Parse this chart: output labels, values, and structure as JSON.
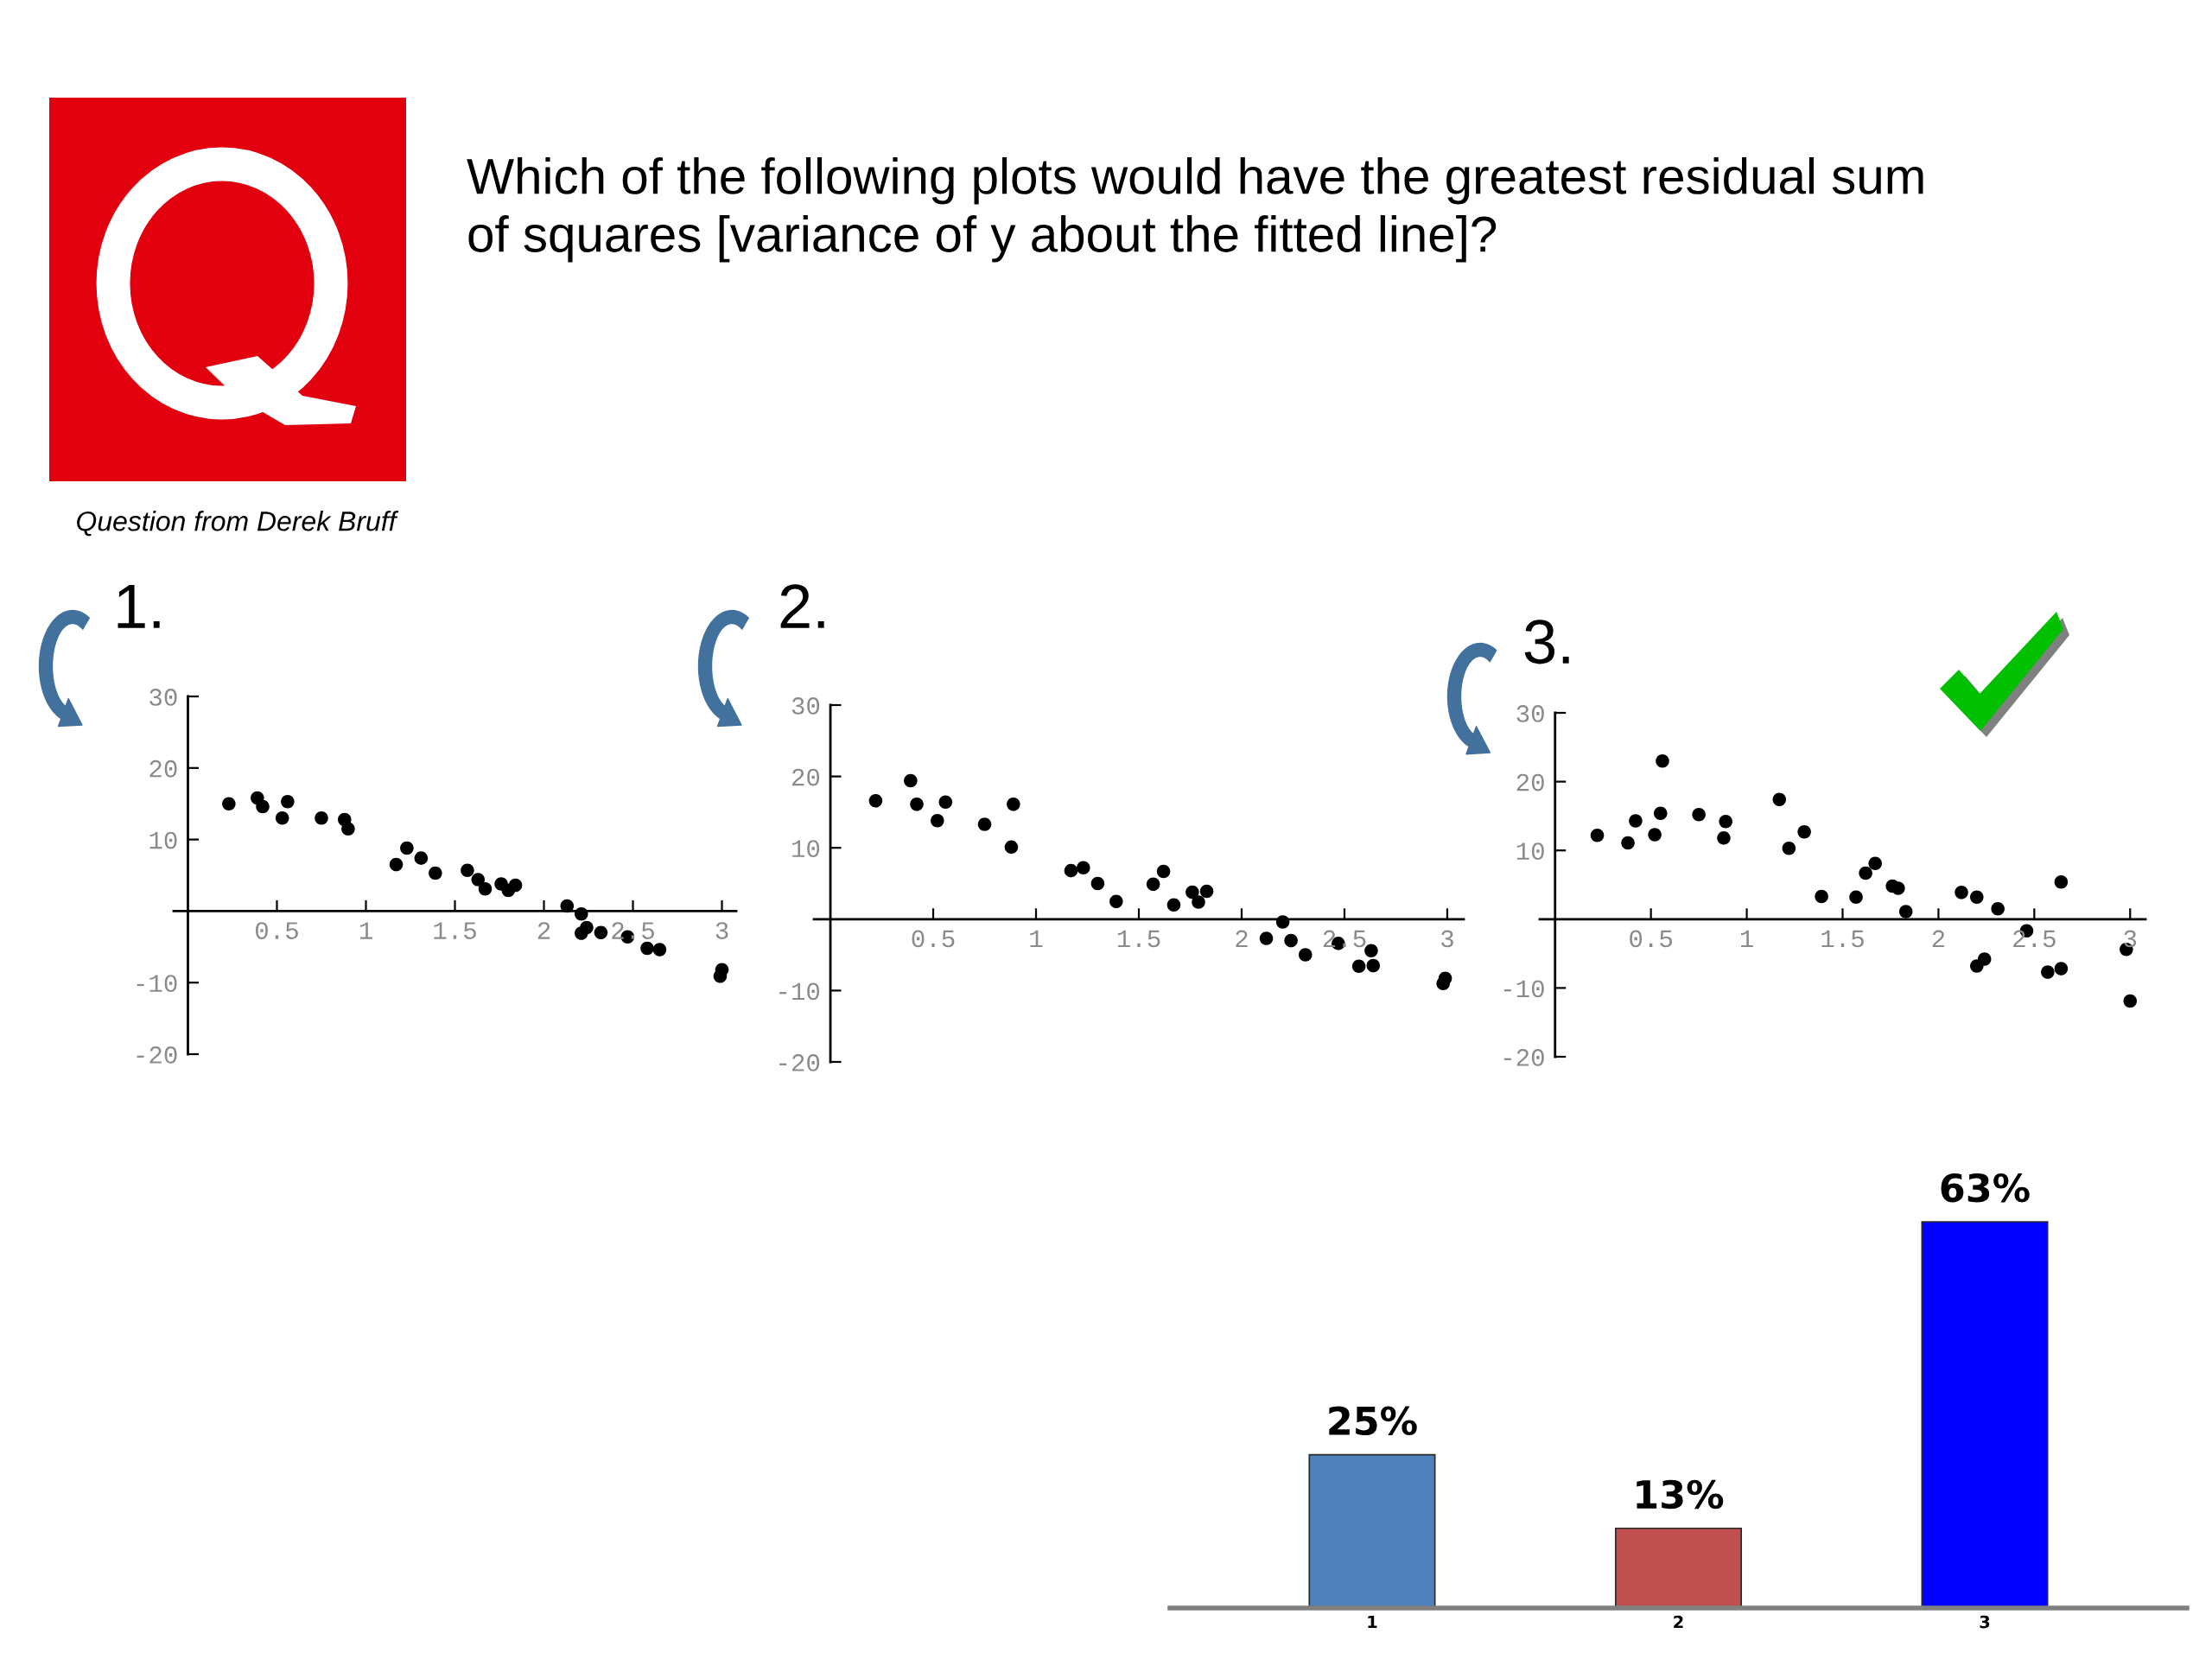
{
  "chart_data": [
    {
      "type": "other",
      "title": "Which of the following plots would have the greatest residual sum of squares [variance of y about the fitted line]?",
      "annotations": [
        "Question from Derek Bruff"
      ]
    },
    {
      "type": "scatter",
      "title": "1.",
      "marker": "circle",
      "xlim": [
        -0.08,
        3.08
      ],
      "ylim": [
        -20,
        30
      ],
      "xticks": [
        0.5,
        1,
        1.5,
        2,
        2.5,
        3
      ],
      "yticks": [
        -20,
        -10,
        10,
        20,
        30
      ],
      "x": [
        0.23,
        0.39,
        0.42,
        0.53,
        0.56,
        0.75,
        0.88,
        0.9,
        1.17,
        1.23,
        1.31,
        1.39,
        1.57,
        1.63,
        1.67,
        1.76,
        1.8,
        1.84,
        2.13,
        2.21,
        2.24,
        2.21,
        2.32,
        2.47,
        2.58,
        2.65,
        3.0,
        2.99
      ],
      "series": [
        {
          "color": "#000000",
          "values": [
            15.0,
            15.8,
            14.6,
            13.0,
            15.3,
            13.0,
            12.8,
            11.5,
            6.5,
            8.8,
            7.4,
            5.3,
            5.7,
            4.4,
            3.1,
            3.8,
            2.9,
            3.6,
            0.7,
            -0.4,
            -2.3,
            -3.1,
            -3.0,
            -3.6,
            -5.2,
            -5.4,
            -8.2,
            -9.1
          ]
        }
      ]
    },
    {
      "type": "scatter",
      "title": "2.",
      "marker": "circle",
      "xlim": [
        -0.08,
        3.08
      ],
      "ylim": [
        -20,
        30
      ],
      "xticks": [
        0.5,
        1,
        1.5,
        2,
        2.5,
        3
      ],
      "yticks": [
        -20,
        -10,
        10,
        20,
        30
      ],
      "x": [
        0.22,
        0.39,
        0.42,
        0.52,
        0.56,
        0.75,
        0.89,
        0.88,
        1.17,
        1.23,
        1.3,
        1.39,
        1.57,
        1.62,
        1.67,
        1.76,
        1.79,
        1.83,
        2.12,
        2.2,
        2.24,
        2.31,
        2.47,
        2.57,
        2.63,
        2.64,
        2.99,
        2.98
      ],
      "series": [
        {
          "color": "#000000",
          "values": [
            16.6,
            19.4,
            16.1,
            13.8,
            16.4,
            13.3,
            16.1,
            10.1,
            6.8,
            7.2,
            5.0,
            2.5,
            4.9,
            6.7,
            2.0,
            3.8,
            2.4,
            3.9,
            -2.7,
            -0.4,
            -3.0,
            -5.0,
            -3.4,
            -6.6,
            -4.4,
            -6.5,
            -8.3,
            -9.0
          ]
        }
      ]
    },
    {
      "type": "scatter",
      "title": "3.",
      "marker": "circle",
      "xlim": [
        -0.08,
        3.08
      ],
      "ylim": [
        -20,
        30
      ],
      "xticks": [
        0.5,
        1,
        1.5,
        2,
        2.5,
        3
      ],
      "yticks": [
        -20,
        -10,
        10,
        20,
        30
      ],
      "x": [
        0.22,
        0.38,
        0.42,
        0.52,
        0.56,
        0.55,
        0.75,
        0.89,
        0.88,
        1.17,
        1.22,
        1.3,
        1.39,
        1.57,
        1.62,
        1.67,
        1.76,
        1.79,
        1.83,
        2.12,
        2.2,
        2.31,
        2.2,
        2.24,
        2.46,
        2.57,
        2.64,
        2.64,
        2.98,
        3.0
      ],
      "series": [
        {
          "color": "#000000",
          "values": [
            12.2,
            11.1,
            14.3,
            12.3,
            23.0,
            15.4,
            15.2,
            14.2,
            11.8,
            17.4,
            10.3,
            12.7,
            3.3,
            3.2,
            6.7,
            8.1,
            4.8,
            4.5,
            1.1,
            3.9,
            3.2,
            1.5,
            -6.8,
            -5.8,
            -1.7,
            -7.7,
            -7.2,
            5.4,
            -4.4,
            -11.9
          ]
        }
      ]
    },
    {
      "type": "bar",
      "categories": [
        "1",
        "2",
        "3"
      ],
      "values": [
        25,
        13,
        63
      ],
      "colors": [
        "#4f81bd",
        "#c0504d",
        "#0000ff"
      ],
      "value_labels": [
        "25%",
        "13%",
        "63%"
      ]
    }
  ]
}
